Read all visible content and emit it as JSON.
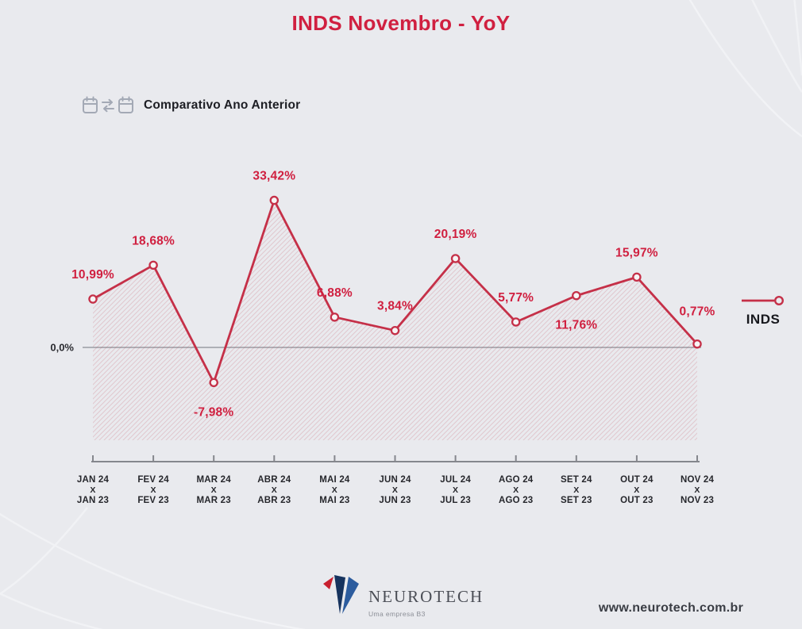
{
  "header": {
    "title": "INDS Novembro - YoY"
  },
  "subtitle": {
    "label": "Comparativo Ano Anterior",
    "icon": "calendar-compare-icon"
  },
  "legend": {
    "label": "INDS",
    "marker": "line-with-hollow-circle"
  },
  "colors": {
    "background": "#e9eaee",
    "accent_red": "#d02040",
    "line_red": "#c53048",
    "text_dark": "#1d1e24",
    "axis_gray": "#85878d",
    "zero_line_gray": "#9b9ca3",
    "logo_red": "#c8202f",
    "logo_navy": "#16335e",
    "logo_blue": "#2c5c9e"
  },
  "chart_data": {
    "type": "line",
    "title": "INDS Novembro - YoY",
    "series": [
      {
        "name": "INDS",
        "values": [
          10.99,
          18.68,
          -7.98,
          33.42,
          6.88,
          3.84,
          20.19,
          5.77,
          11.76,
          15.97,
          0.77
        ]
      }
    ],
    "value_labels": [
      "10,99%",
      "18,68%",
      "-7,98%",
      "33,42%",
      "6,88%",
      "3,84%",
      "20,19%",
      "5,77%",
      "11,76%",
      "15,97%",
      "0,77%"
    ],
    "categories": [
      {
        "top": "JAN 24",
        "bottom": "JAN 23"
      },
      {
        "top": "FEV 24",
        "bottom": "FEV 23"
      },
      {
        "top": "MAR 24",
        "bottom": "MAR 23"
      },
      {
        "top": "ABR 24",
        "bottom": "ABR 23"
      },
      {
        "top": "MAI 24",
        "bottom": "MAI 23"
      },
      {
        "top": "JUN 24",
        "bottom": "JUN 23"
      },
      {
        "top": "JUL 24",
        "bottom": "JUL 23"
      },
      {
        "top": "AGO 24",
        "bottom": "AGO 23"
      },
      {
        "top": "SET 24",
        "bottom": "SET 23"
      },
      {
        "top": "OUT 24",
        "bottom": "OUT 23"
      },
      {
        "top": "NOV 24",
        "bottom": "NOV 23"
      }
    ],
    "category_separator": "X",
    "y_zero_label": "0,0%",
    "ylim": [
      -20,
      40
    ],
    "grid": "zero-line-only",
    "legend_position": "right",
    "legend_label": "INDS",
    "marker_style": "hollow-circle",
    "area_style": "diagonal-hatch",
    "label_side": [
      "above",
      "above",
      "below",
      "above",
      "above",
      "above",
      "above",
      "above",
      "below",
      "above",
      "above"
    ]
  },
  "footer": {
    "brand": "NEUROTECH",
    "brand_tagline": "Uma empresa B3",
    "website": "www.neurotech.com.br"
  }
}
